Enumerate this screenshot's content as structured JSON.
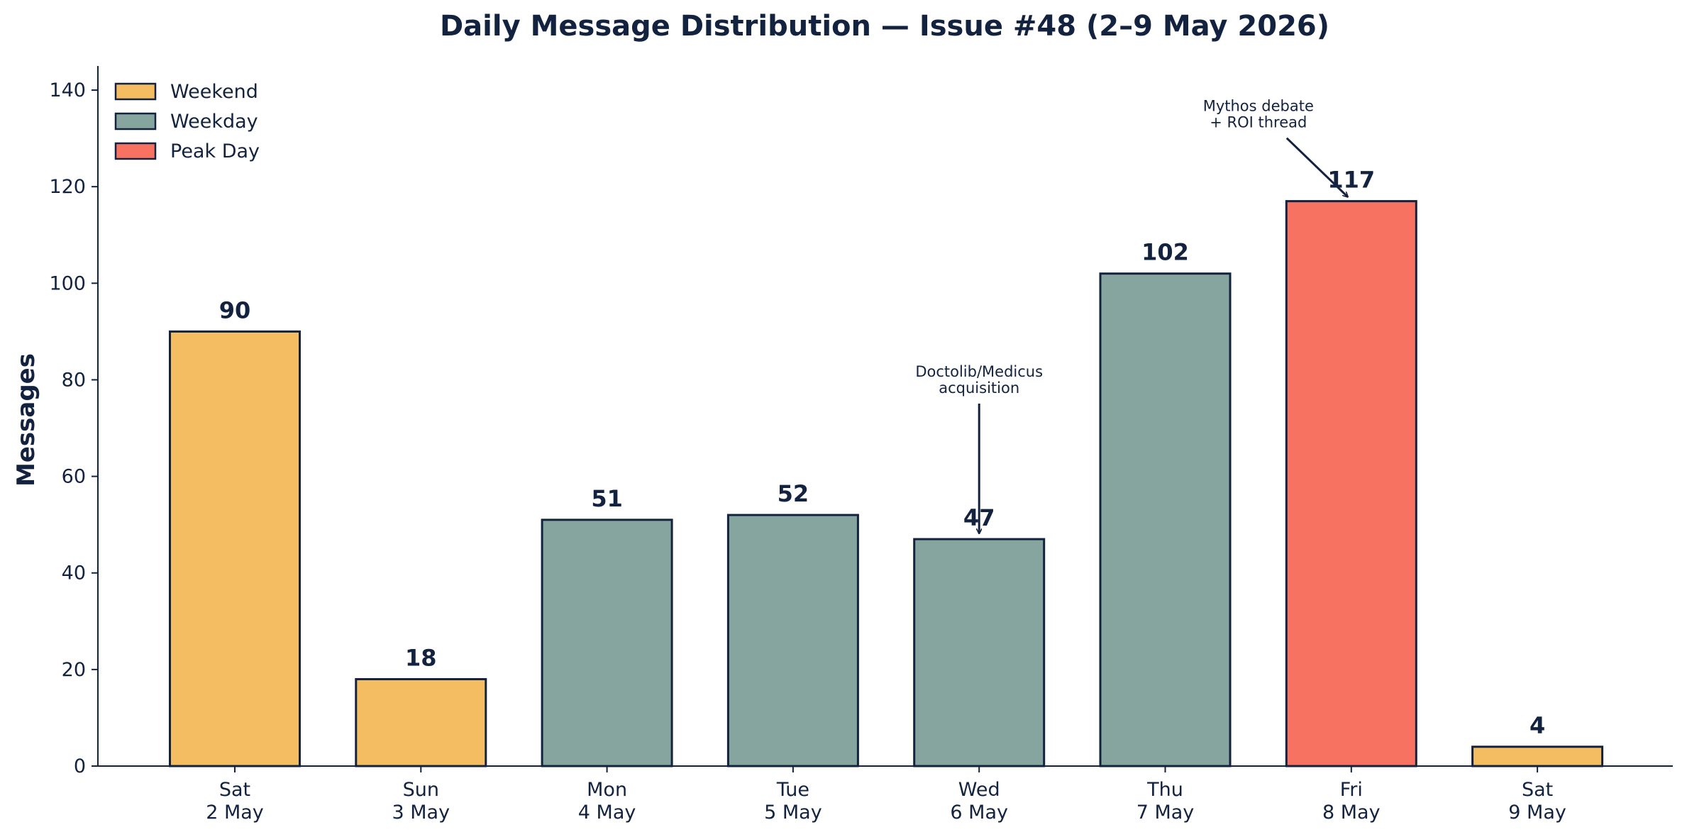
{
  "chart_data": {
    "type": "bar",
    "title": "Daily Message Distribution — Issue #48 (2–9 May 2026)",
    "xlabel": "",
    "ylabel": "Messages",
    "ylim": [
      0,
      145
    ],
    "yticks": [
      0,
      20,
      40,
      60,
      80,
      100,
      120,
      140
    ],
    "categories": [
      [
        "Sat",
        "2 May"
      ],
      [
        "Sun",
        "3 May"
      ],
      [
        "Mon",
        "4 May"
      ],
      [
        "Tue",
        "5 May"
      ],
      [
        "Wed",
        "6 May"
      ],
      [
        "Thu",
        "7 May"
      ],
      [
        "Fri",
        "8 May"
      ],
      [
        "Sat",
        "9 May"
      ]
    ],
    "values": [
      90,
      18,
      51,
      52,
      47,
      102,
      117,
      4
    ],
    "groups": [
      "Weekend",
      "Weekend",
      "Weekday",
      "Weekday",
      "Weekday",
      "Weekday",
      "Peak Day",
      "Weekend"
    ],
    "legend": {
      "position": "top-left",
      "entries": [
        {
          "name": "Weekend",
          "color": "#f5bd62"
        },
        {
          "name": "Weekday",
          "color": "#86a59e"
        },
        {
          "name": "Peak Day",
          "color": "#f87262"
        }
      ]
    },
    "bar_edge_color": "#13233f",
    "grid": false,
    "annotations": [
      {
        "lines": [
          "Doctolib/Medicus",
          "acquisition"
        ],
        "target_index": 4,
        "text_y": 78
      },
      {
        "lines": [
          "Mythos debate",
          "+ ROI thread"
        ],
        "target_index": 6,
        "text_y": 133
      }
    ]
  }
}
